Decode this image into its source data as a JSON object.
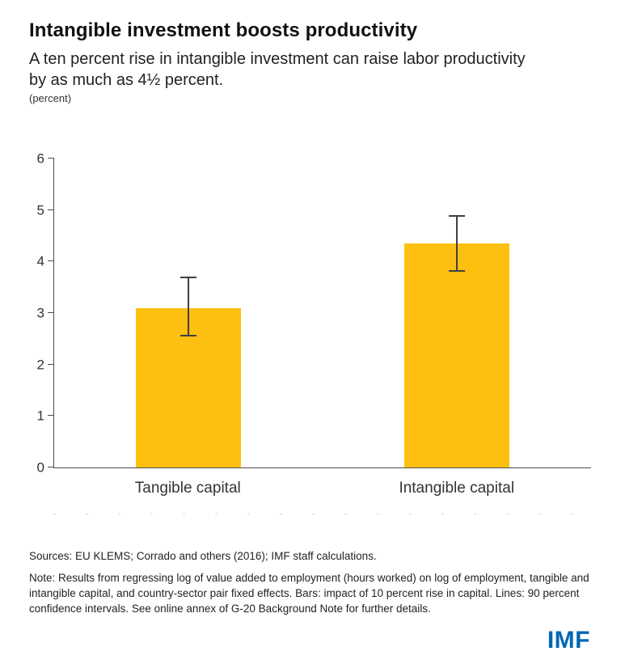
{
  "header": {
    "title": "Intangible investment boosts productivity",
    "subtitle": "A ten percent rise in intangible investment can raise labor productivity by as much as 4½ percent.",
    "unit_label": "(percent)"
  },
  "chart_data": {
    "type": "bar",
    "title": "Intangible investment boosts productivity",
    "ylabel": "(percent)",
    "categories": [
      "Tangible capital",
      "Intangible capital"
    ],
    "values": [
      3.1,
      4.35
    ],
    "error_low": [
      2.55,
      3.8
    ],
    "error_high": [
      3.7,
      4.9
    ],
    "ylim": [
      0,
      6
    ],
    "yticks": [
      0,
      1,
      2,
      3,
      4,
      5,
      6
    ],
    "bar_color": "#FDC010",
    "error_color": "#404040",
    "grid": false,
    "legend": "none",
    "error_note": "Lines show 90 percent confidence intervals"
  },
  "footer": {
    "sources": "Sources: EU KLEMS; Corrado and others (2016); IMF staff calculations.",
    "note": "Note: Results from regressing log of value added to employment (hours worked) on log of employment, tangible and intangible capital, and country-sector pair fixed effects. Bars: impact of 10 percent rise in capital. Lines: 90 percent confidence intervals. See online annex of G-20 Background Note for further details.",
    "logo_text": "IMF",
    "logo_color": "#0066B3"
  }
}
